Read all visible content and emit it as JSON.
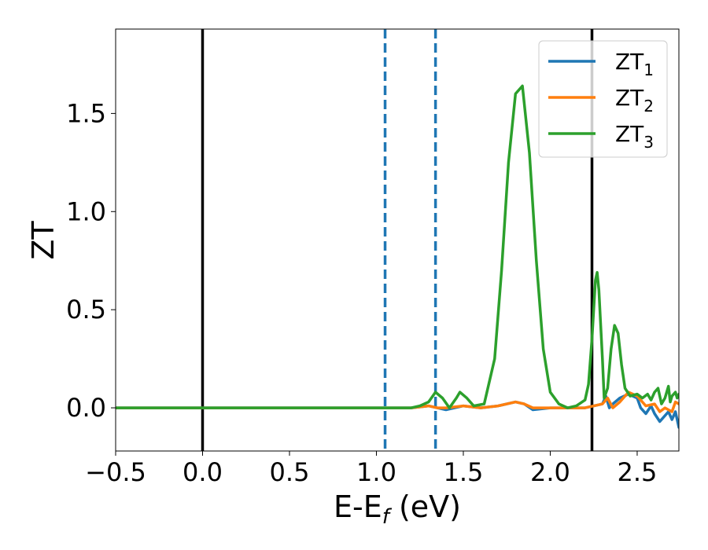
{
  "chart_data": {
    "type": "line",
    "xlabel": "E-E",
    "xlabel_sub": "f",
    "xlabel_unit": " (eV)",
    "ylabel": "ZT",
    "xlim": [
      -0.5,
      2.74
    ],
    "ylim": [
      -0.22,
      1.93
    ],
    "xticks": [
      -0.5,
      0.0,
      0.5,
      1.0,
      1.5,
      2.0,
      2.5
    ],
    "xtick_labels": [
      "−0.5",
      "0.0",
      "0.5",
      "1.0",
      "1.5",
      "2.0",
      "2.5"
    ],
    "yticks": [
      0.0,
      0.5,
      1.0,
      1.5
    ],
    "ytick_labels": [
      "0.0",
      "0.5",
      "1.0",
      "1.5"
    ],
    "grid": false,
    "legend_position": "top-right",
    "vlines": [
      {
        "x": 0.0,
        "style": "solid",
        "color": "#000000"
      },
      {
        "x": 1.05,
        "style": "dashed",
        "color": "#1f77b4"
      },
      {
        "x": 1.34,
        "style": "dashed",
        "color": "#1f77b4"
      },
      {
        "x": 2.24,
        "style": "solid",
        "color": "#000000"
      }
    ],
    "series": [
      {
        "name": "ZT",
        "name_sub": "1",
        "color": "#1f77b4",
        "x": [
          -0.5,
          1.0,
          1.2,
          1.3,
          1.35,
          1.4,
          1.5,
          1.6,
          1.7,
          1.8,
          1.85,
          1.9,
          2.0,
          2.1,
          2.2,
          2.3,
          2.32,
          2.34,
          2.36,
          2.4,
          2.45,
          2.5,
          2.52,
          2.55,
          2.58,
          2.6,
          2.63,
          2.65,
          2.68,
          2.7,
          2.72,
          2.74
        ],
        "y": [
          0.0,
          0.0,
          0.0,
          0.01,
          0.0,
          -0.01,
          0.01,
          0.0,
          0.01,
          0.03,
          0.02,
          -0.01,
          0.0,
          0.0,
          0.0,
          0.02,
          0.06,
          0.0,
          0.02,
          0.05,
          0.07,
          0.05,
          0.0,
          -0.03,
          0.01,
          -0.03,
          -0.07,
          -0.05,
          -0.02,
          -0.06,
          -0.02,
          -0.1
        ]
      },
      {
        "name": "ZT",
        "name_sub": "2",
        "color": "#ff7f0e",
        "x": [
          -0.5,
          1.0,
          1.2,
          1.3,
          1.35,
          1.4,
          1.5,
          1.6,
          1.7,
          1.8,
          1.85,
          1.9,
          2.0,
          2.1,
          2.2,
          2.3,
          2.33,
          2.36,
          2.4,
          2.45,
          2.5,
          2.55,
          2.6,
          2.63,
          2.66,
          2.7,
          2.72,
          2.74
        ],
        "y": [
          0.0,
          0.0,
          0.0,
          0.01,
          0.0,
          0.0,
          0.01,
          0.0,
          0.01,
          0.03,
          0.02,
          0.0,
          0.0,
          0.0,
          0.0,
          0.02,
          0.05,
          0.0,
          0.03,
          0.08,
          0.06,
          0.01,
          0.02,
          -0.02,
          0.0,
          -0.02,
          0.03,
          0.02
        ]
      },
      {
        "name": "ZT",
        "name_sub": "3",
        "color": "#2ca02c",
        "x": [
          -0.5,
          1.0,
          1.1,
          1.2,
          1.25,
          1.3,
          1.34,
          1.38,
          1.42,
          1.46,
          1.48,
          1.52,
          1.56,
          1.62,
          1.68,
          1.72,
          1.76,
          1.8,
          1.84,
          1.88,
          1.92,
          1.96,
          2.0,
          2.05,
          2.1,
          2.15,
          2.2,
          2.22,
          2.24,
          2.26,
          2.27,
          2.28,
          2.3,
          2.31,
          2.33,
          2.35,
          2.37,
          2.39,
          2.41,
          2.43,
          2.46,
          2.5,
          2.53,
          2.56,
          2.58,
          2.6,
          2.62,
          2.64,
          2.66,
          2.68,
          2.69,
          2.7,
          2.72,
          2.73,
          2.74
        ],
        "y": [
          0.0,
          0.0,
          0.0,
          0.0,
          0.01,
          0.03,
          0.08,
          0.05,
          0.0,
          0.05,
          0.08,
          0.05,
          0.01,
          0.02,
          0.25,
          0.7,
          1.25,
          1.6,
          1.64,
          1.3,
          0.75,
          0.3,
          0.08,
          0.02,
          0.0,
          0.01,
          0.04,
          0.12,
          0.35,
          0.65,
          0.69,
          0.6,
          0.25,
          0.05,
          0.1,
          0.3,
          0.42,
          0.38,
          0.22,
          0.1,
          0.06,
          0.07,
          0.05,
          0.07,
          0.04,
          0.08,
          0.1,
          0.02,
          0.05,
          0.11,
          0.03,
          0.06,
          0.08,
          0.05,
          0.07
        ]
      }
    ]
  }
}
